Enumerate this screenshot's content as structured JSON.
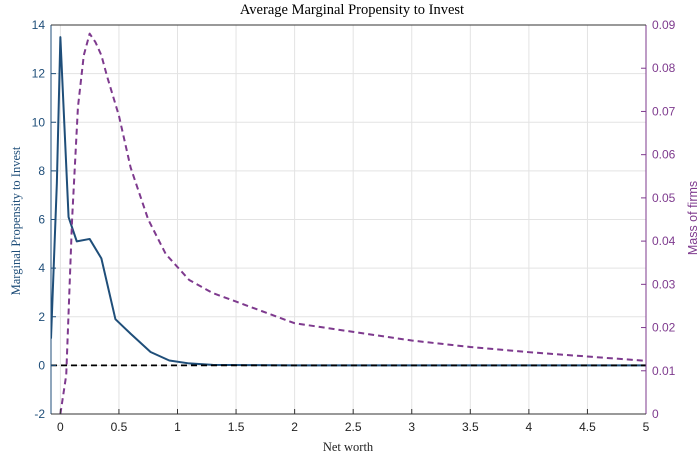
{
  "chart_data": {
    "type": "line",
    "title": "Average Marginal Propensity to Invest",
    "xlabel": "Net worth",
    "ylabel_left": "Marginal Propensity to Invest",
    "ylabel_right": "Mass of firms",
    "xlim": [
      -0.08,
      5
    ],
    "ylim_left": [
      -2,
      14
    ],
    "ylim_right": [
      0,
      0.09
    ],
    "x_ticks": [
      "0",
      "0.5",
      "1",
      "1.5",
      "2",
      "2.5",
      "3",
      "3.5",
      "4",
      "4.5",
      "5"
    ],
    "y_left_ticks": [
      "-2",
      "0",
      "2",
      "4",
      "6",
      "8",
      "10",
      "12",
      "14"
    ],
    "y_right_ticks": [
      "0",
      "0.01",
      "0.02",
      "0.03",
      "0.04",
      "0.05",
      "0.06",
      "0.07",
      "0.08",
      "0.09"
    ],
    "grid": true,
    "colors": {
      "mpi": "#1f4e79",
      "mass": "#7e3a8e",
      "zero_line": "#000000",
      "grid": "#e3e3e3"
    },
    "series": [
      {
        "axis": "left",
        "style": "solid",
        "x": [
          -0.08,
          -0.03,
          0.0,
          0.07,
          0.14,
          0.25,
          0.35,
          0.47,
          0.6,
          0.77,
          0.93,
          1.1,
          1.3,
          1.6,
          2.0,
          3.0,
          4.0,
          5.0
        ],
        "values": [
          1.1,
          7.5,
          13.5,
          6.1,
          5.1,
          5.2,
          4.4,
          1.9,
          1.3,
          0.55,
          0.2,
          0.08,
          0.02,
          0.01,
          0.0,
          0.0,
          0.0,
          0.0
        ]
      },
      {
        "axis": "right",
        "style": "dashed",
        "x": [
          0.0,
          0.05,
          0.1,
          0.15,
          0.2,
          0.25,
          0.3,
          0.35,
          0.4,
          0.5,
          0.6,
          0.75,
          0.9,
          1.1,
          1.3,
          1.5,
          2.0,
          2.5,
          3.0,
          3.5,
          4.0,
          4.5,
          5.0
        ],
        "values": [
          0.0,
          0.009,
          0.045,
          0.071,
          0.083,
          0.088,
          0.086,
          0.083,
          0.078,
          0.069,
          0.057,
          0.045,
          0.037,
          0.031,
          0.028,
          0.026,
          0.021,
          0.019,
          0.017,
          0.0155,
          0.0143,
          0.0133,
          0.0123
        ]
      },
      {
        "axis": "left",
        "style": "dashed",
        "x": [
          -0.08,
          5.0
        ],
        "values": [
          0,
          0
        ]
      }
    ]
  }
}
